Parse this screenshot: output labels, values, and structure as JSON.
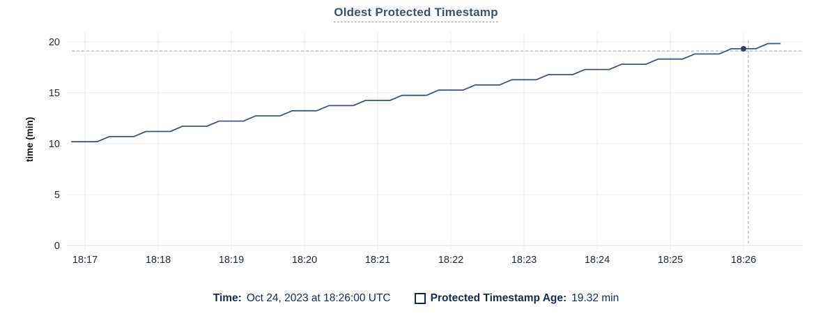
{
  "title": "Oldest Protected Timestamp",
  "ylabel": "time (min)",
  "footer": {
    "time_label": "Time:",
    "time_value": "Oct 24, 2023 at 18:26:00 UTC",
    "series_label": "Protected Timestamp Age:",
    "series_value": "19.32 min"
  },
  "colors": {
    "title": "#3e5266",
    "title_underline": "#8ba0b5",
    "line": "#43546e",
    "dot": "#33415c",
    "crosshair": "#a5bac8",
    "grid": "#ededed",
    "baseline": "#dcdfe3",
    "tick_text": "#232b36",
    "legend_text": "#162a4d"
  },
  "chart_data": {
    "type": "line",
    "title": "Oldest Protected Timestamp",
    "xlabel": "",
    "ylabel": "time (min)",
    "ylim": [
      0,
      20
    ],
    "yticks": [
      0,
      5,
      10,
      15,
      20
    ],
    "xticks": [
      "18:17",
      "18:18",
      "18:19",
      "18:20",
      "18:21",
      "18:22",
      "18:23",
      "18:24",
      "18:25",
      "18:26"
    ],
    "grid": true,
    "legend_position": "bottom",
    "series": [
      {
        "name": "Protected Timestamp Age",
        "unit": "min",
        "points": [
          [
            "18:16:49",
            10.19
          ],
          [
            "18:17:10",
            10.19
          ],
          [
            "18:17:20",
            10.7
          ],
          [
            "18:17:40",
            10.7
          ],
          [
            "18:17:50",
            11.2
          ],
          [
            "18:18:10",
            11.2
          ],
          [
            "18:18:20",
            11.71
          ],
          [
            "18:18:40",
            11.71
          ],
          [
            "18:18:50",
            12.22
          ],
          [
            "18:19:10",
            12.22
          ],
          [
            "18:19:20",
            12.73
          ],
          [
            "18:19:40",
            12.73
          ],
          [
            "18:19:50",
            13.23
          ],
          [
            "18:20:10",
            13.23
          ],
          [
            "18:20:20",
            13.74
          ],
          [
            "18:20:40",
            13.74
          ],
          [
            "18:20:50",
            14.25
          ],
          [
            "18:21:10",
            14.25
          ],
          [
            "18:21:20",
            14.75
          ],
          [
            "18:21:40",
            14.75
          ],
          [
            "18:21:50",
            15.26
          ],
          [
            "18:22:10",
            15.26
          ],
          [
            "18:22:20",
            15.77
          ],
          [
            "18:22:40",
            15.77
          ],
          [
            "18:22:50",
            16.28
          ],
          [
            "18:23:10",
            16.28
          ],
          [
            "18:23:20",
            16.78
          ],
          [
            "18:23:40",
            16.78
          ],
          [
            "18:23:50",
            17.29
          ],
          [
            "18:24:10",
            17.29
          ],
          [
            "18:24:20",
            17.8
          ],
          [
            "18:24:40",
            17.8
          ],
          [
            "18:24:50",
            18.31
          ],
          [
            "18:25:10",
            18.31
          ],
          [
            "18:25:20",
            18.81
          ],
          [
            "18:25:40",
            18.81
          ],
          [
            "18:25:50",
            19.32
          ],
          [
            "18:26:10",
            19.32
          ],
          [
            "18:26:20",
            19.83
          ],
          [
            "18:26:30",
            19.83
          ]
        ]
      }
    ],
    "highlight_point": {
      "time": "18:26:00",
      "value": 19.32
    },
    "crosshair": {
      "time": "18:26:04",
      "value": 19.1
    }
  }
}
